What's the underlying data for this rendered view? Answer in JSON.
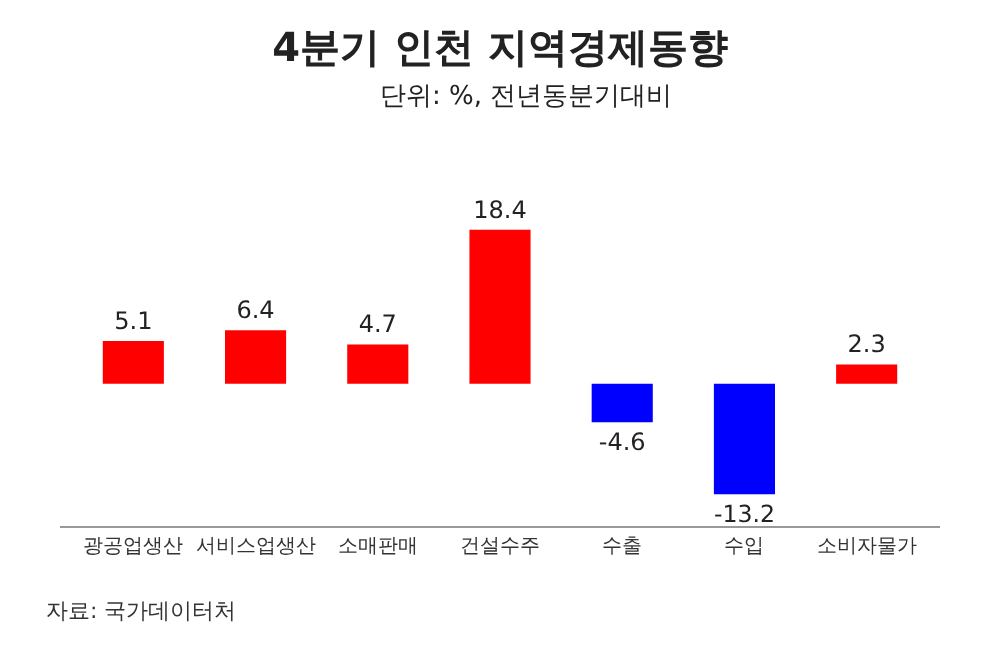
{
  "chart_data": {
    "type": "bar",
    "title": "4분기 인천 지역경제동향",
    "subtitle": "단위: %, 전년동분기대비",
    "categories": [
      "광공업생산",
      "서비스업생산",
      "소매판매",
      "건설수주",
      "수출",
      "수입",
      "소비자물가"
    ],
    "values": [
      5.1,
      6.4,
      4.7,
      18.4,
      -4.6,
      -13.2,
      2.3
    ],
    "colors": [
      "#ff0000",
      "#ff0000",
      "#ff0000",
      "#ff0000",
      "#0000ff",
      "#0000ff",
      "#ff0000"
    ],
    "data_labels": true,
    "legend": false,
    "tick_labels": "x",
    "annotations": [
      "자료: 국가데이터처"
    ]
  }
}
